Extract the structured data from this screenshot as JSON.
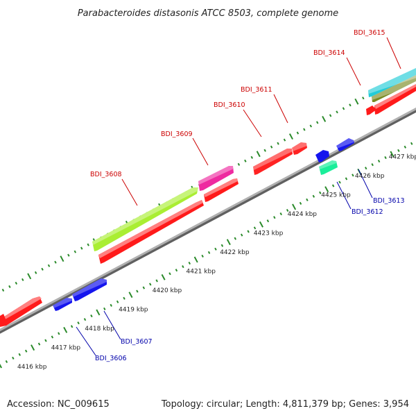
{
  "title": "Parabacteroides distasonis ATCC 8503, complete genome",
  "footer": {
    "accession": "Accession: NC_009615",
    "summary": "Topology: circular; Length: 4,811,379 bp; Genes: 3,954"
  },
  "colors": {
    "background": "#ffffff",
    "backbone": "#8c8c8c",
    "ruler_ticks": "#2a8a2a",
    "label_forward": "#cc0000",
    "label_reverse": "#0000aa"
  },
  "ruler": {
    "unit": "kbp",
    "kbp_labels": [
      "4416 kbp",
      "4417 kbp",
      "4418 kbp",
      "4419 kbp",
      "4420 kbp",
      "4421 kbp",
      "4422 kbp",
      "4423 kbp",
      "4424 kbp",
      "4425 kbp",
      "4426 kbp",
      "4427 kbp"
    ]
  },
  "genes_forward": [
    {
      "name": "BDI_3608",
      "color": "#aaee33",
      "start_kbp": 4420.9,
      "end_kbp": 4423.6,
      "label_color": "#cc0000"
    },
    {
      "name": "BDI_3609",
      "color": "#ee2aa0",
      "start_kbp": 4423.7,
      "end_kbp": 4424.2,
      "label_color": "#cc0000"
    },
    {
      "name": "BDI_3610",
      "color": "#ff2222",
      "start_kbp": 4425.6,
      "end_kbp": 4426.2,
      "label_color": "#cc0000"
    },
    {
      "name": "BDI_3611",
      "color": "#ff2222",
      "start_kbp": 4426.3,
      "end_kbp": 4426.5,
      "label_color": "#cc0000"
    },
    {
      "name": "BDI_3614",
      "color": "#7a8a22",
      "start_kbp": 4428.3,
      "end_kbp": 4429.8,
      "label_color": "#cc0000"
    },
    {
      "name": "BDI_3615",
      "color": "#22ccd8",
      "start_kbp": 4428.3,
      "end_kbp": 4429.8,
      "label_color": "#cc0000"
    }
  ],
  "genes_reverse": [
    {
      "name": "BDI_3606",
      "color": "#1515ee",
      "start_kbp": 4418.9,
      "end_kbp": 4419.3,
      "label_color": "#0000aa"
    },
    {
      "name": "BDI_3607",
      "color": "#1515ee",
      "start_kbp": 4419.4,
      "end_kbp": 4420.0,
      "label_color": "#0000aa"
    },
    {
      "name": "BDI_3612",
      "color": "#1aee9a",
      "start_kbp": 4426.6,
      "end_kbp": 4427.0,
      "label_color": "#0000aa"
    },
    {
      "name": "BDI_3613",
      "color": "#1515ee",
      "start_kbp": 4427.2,
      "end_kbp": 4427.6,
      "label_color": "#0000aa"
    }
  ]
}
